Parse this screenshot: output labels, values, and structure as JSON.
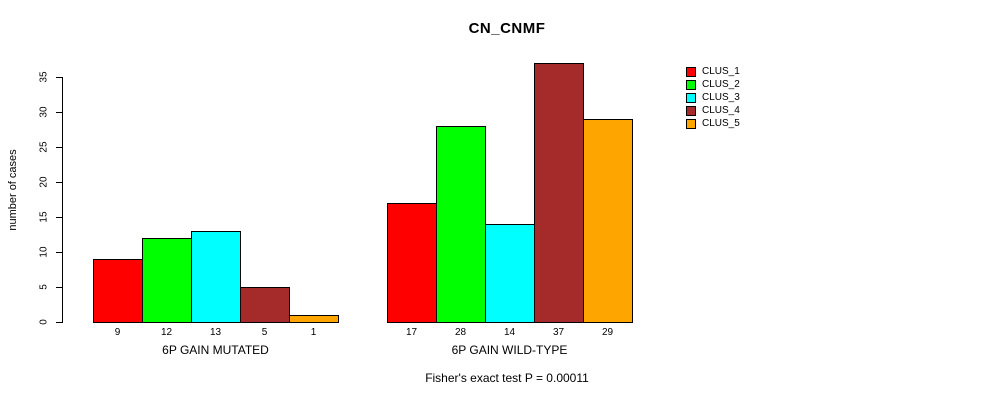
{
  "figure": {
    "title": "CN_CNMF",
    "annotation": "Fisher's exact test P = 0.00011"
  },
  "chart_data": {
    "type": "bar",
    "title": "CN_CNMF",
    "xlabel": "",
    "ylabel": "number of cases",
    "ylim": [
      0,
      37
    ],
    "yticks": [
      0,
      5,
      10,
      15,
      20,
      25,
      30,
      35
    ],
    "grid": false,
    "legend_position": "top-right",
    "categories": [
      "6P GAIN MUTATED",
      "6P GAIN WILD-TYPE"
    ],
    "series": [
      {
        "name": "CLUS_1",
        "color": "#ff0000",
        "values": [
          9,
          17
        ]
      },
      {
        "name": "CLUS_2",
        "color": "#00ff00",
        "values": [
          12,
          28
        ]
      },
      {
        "name": "CLUS_3",
        "color": "#00ffff",
        "values": [
          13,
          14
        ]
      },
      {
        "name": "CLUS_4",
        "color": "#a52a2a",
        "values": [
          5,
          37
        ]
      },
      {
        "name": "CLUS_5",
        "color": "#ffa500",
        "values": [
          1,
          29
        ]
      }
    ],
    "bar_value_labels": {
      "6P GAIN MUTATED": [
        9,
        12,
        13,
        5,
        1
      ],
      "6P GAIN WILD-TYPE": [
        17,
        28,
        14,
        37,
        29
      ]
    },
    "annotation": "Fisher's exact test P = 0.00011"
  }
}
